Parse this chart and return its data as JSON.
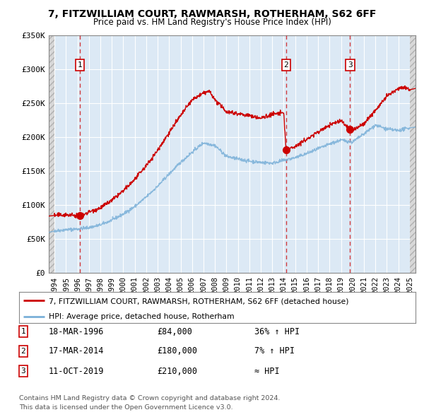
{
  "title": "7, FITZWILLIAM COURT, RAWMARSH, ROTHERHAM, S62 6FF",
  "subtitle": "Price paid vs. HM Land Registry's House Price Index (HPI)",
  "legend_label_red": "7, FITZWILLIAM COURT, RAWMARSH, ROTHERHAM, S62 6FF (detached house)",
  "legend_label_blue": "HPI: Average price, detached house, Rotherham",
  "transactions": [
    {
      "num": 1,
      "date": "18-MAR-1996",
      "price": "£84,000",
      "hpi_rel": "36% ↑ HPI",
      "x": 1996.21
    },
    {
      "num": 2,
      "date": "17-MAR-2014",
      "price": "£180,000",
      "hpi_rel": "7% ↑ HPI",
      "x": 2014.21
    },
    {
      "num": 3,
      "date": "11-OCT-2019",
      "price": "£210,000",
      "hpi_rel": "≈ HPI",
      "x": 2019.79
    }
  ],
  "footer_line1": "Contains HM Land Registry data © Crown copyright and database right 2024.",
  "footer_line2": "This data is licensed under the Open Government Licence v3.0.",
  "ylim": [
    0,
    350000
  ],
  "xlim": [
    1993.5,
    2025.5
  ],
  "background_color": "#dce9f5",
  "red_color": "#cc0000",
  "blue_color": "#7ab0d8",
  "grid_color": "#ffffff",
  "yticks": [
    0,
    50000,
    100000,
    150000,
    200000,
    250000,
    300000,
    350000
  ],
  "ytick_labels": [
    "£0",
    "£50K",
    "£100K",
    "£150K",
    "£200K",
    "£250K",
    "£300K",
    "£350K"
  ],
  "xticks": [
    1994,
    1995,
    1996,
    1997,
    1998,
    1999,
    2000,
    2001,
    2002,
    2003,
    2004,
    2005,
    2006,
    2007,
    2008,
    2009,
    2010,
    2011,
    2012,
    2013,
    2014,
    2015,
    2016,
    2017,
    2018,
    2019,
    2020,
    2021,
    2022,
    2023,
    2024,
    2025
  ],
  "hpi_years": [
    1993.5,
    1994,
    1995,
    1996,
    1997,
    1998,
    1999,
    2000,
    2001,
    2002,
    2003,
    2004,
    2005,
    2006,
    2007,
    2008,
    2009,
    2010,
    2011,
    2012,
    2013,
    2014,
    2015,
    2016,
    2017,
    2018,
    2019,
    2020,
    2021,
    2022,
    2023,
    2024,
    2025,
    2025.5
  ],
  "hpi_prices": [
    60000,
    62000,
    64000,
    65000,
    67000,
    71000,
    78000,
    87000,
    98000,
    112000,
    128000,
    146000,
    163000,
    178000,
    192000,
    188000,
    172000,
    168000,
    165000,
    163000,
    162000,
    166000,
    170000,
    176000,
    183000,
    190000,
    196000,
    193000,
    205000,
    218000,
    212000,
    210000,
    214000,
    215000
  ],
  "red_years": [
    1993.5,
    1994,
    1995,
    1996.21,
    1997,
    1998,
    1999,
    2000,
    2001,
    2002,
    2003,
    2004,
    2005,
    2006,
    2007,
    2007.5,
    2008,
    2009,
    2010,
    2011,
    2012,
    2013,
    2014.0,
    2014.21,
    2015,
    2016,
    2017,
    2018,
    2019,
    2019.79,
    2020,
    2021,
    2022,
    2023,
    2024,
    2024.5,
    2025,
    2025.5
  ],
  "red_prices": [
    84000,
    85000,
    86000,
    84000,
    90000,
    96000,
    107000,
    121000,
    138000,
    158000,
    181000,
    207000,
    232000,
    255000,
    265000,
    268000,
    255000,
    238000,
    235000,
    232000,
    228000,
    234000,
    236000,
    180000,
    187000,
    197000,
    208000,
    218000,
    225000,
    210000,
    210000,
    220000,
    240000,
    260000,
    272000,
    274000,
    270000,
    272000
  ]
}
